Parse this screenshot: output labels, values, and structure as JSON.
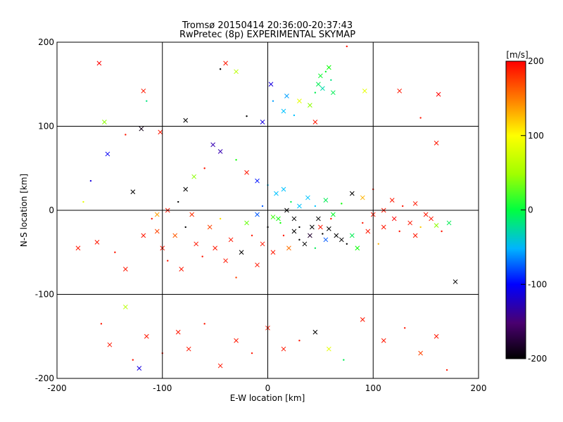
{
  "chart_data": {
    "type": "scatter",
    "title": "Tromsø 20150414 20:36:00-20:37:43",
    "subtitle": "RwPretec (8p) EXPERIMENTAL SKYMAP",
    "xlabel": "E-W location [km]",
    "ylabel": "N-S location [km]",
    "xlim": [
      -200,
      200
    ],
    "ylim": [
      -200,
      200
    ],
    "xticks": [
      -200,
      -100,
      0,
      100,
      200
    ],
    "yticks": [
      -200,
      -100,
      0,
      100,
      200
    ],
    "grid": true,
    "colorbar": {
      "label": "[m/s]",
      "range": [
        -200,
        200
      ],
      "ticks": [
        200,
        100,
        0,
        -100,
        -200
      ],
      "colors": [
        "#000000",
        "#5a0080",
        "#0000ff",
        "#00c8ff",
        "#00ff00",
        "#ffff00",
        "#ff8000",
        "#ff0000"
      ]
    },
    "markers": [
      "cross",
      "dot"
    ],
    "series": [
      {
        "points": [
          [
            -160,
            175,
            210
          ],
          [
            -155,
            105,
            60
          ],
          [
            -135,
            90,
            190
          ],
          [
            -120,
            97,
            -190
          ],
          [
            -118,
            142,
            190
          ],
          [
            -115,
            130,
            0
          ],
          [
            -102,
            93,
            190
          ],
          [
            -78,
            107,
            -200
          ],
          [
            -45,
            168,
            -200
          ],
          [
            -40,
            175,
            190
          ],
          [
            -30,
            165,
            70
          ],
          [
            -20,
            112,
            -200
          ],
          [
            -5,
            105,
            -100
          ],
          [
            3,
            150,
            -100
          ],
          [
            5,
            130,
            -40
          ],
          [
            18,
            136,
            -40
          ],
          [
            15,
            118,
            -30
          ],
          [
            25,
            113,
            -30
          ],
          [
            30,
            130,
            80
          ],
          [
            40,
            125,
            60
          ],
          [
            45,
            140,
            10
          ],
          [
            48,
            150,
            10
          ],
          [
            50,
            160,
            20
          ],
          [
            55,
            165,
            20
          ],
          [
            58,
            170,
            30
          ],
          [
            52,
            145,
            -10
          ],
          [
            60,
            155,
            0
          ],
          [
            62,
            140,
            10
          ],
          [
            45,
            105,
            190
          ],
          [
            75,
            195,
            190
          ],
          [
            92,
            142,
            80
          ],
          [
            125,
            142,
            190
          ],
          [
            145,
            110,
            190
          ],
          [
            162,
            138,
            200
          ],
          [
            160,
            80,
            190
          ],
          [
            -168,
            35,
            -100
          ],
          [
            -152,
            67,
            -90
          ],
          [
            -128,
            22,
            -200
          ],
          [
            -175,
            10,
            80
          ],
          [
            -180,
            -45,
            190
          ],
          [
            -162,
            -38,
            190
          ],
          [
            -145,
            -50,
            190
          ],
          [
            -135,
            -70,
            190
          ],
          [
            -118,
            -30,
            190
          ],
          [
            -110,
            -10,
            190
          ],
          [
            -105,
            -25,
            170
          ],
          [
            -100,
            -45,
            190
          ],
          [
            -95,
            -60,
            190
          ],
          [
            -88,
            -30,
            160
          ],
          [
            -82,
            -70,
            190
          ],
          [
            -78,
            -20,
            -200
          ],
          [
            -72,
            -5,
            180
          ],
          [
            -68,
            -40,
            190
          ],
          [
            -62,
            -55,
            190
          ],
          [
            -55,
            -20,
            170
          ],
          [
            -50,
            -45,
            190
          ],
          [
            -45,
            -10,
            100
          ],
          [
            -40,
            -60,
            190
          ],
          [
            -35,
            -35,
            190
          ],
          [
            -30,
            -80,
            170
          ],
          [
            -25,
            -50,
            -200
          ],
          [
            -20,
            -15,
            50
          ],
          [
            -15,
            -30,
            190
          ],
          [
            -10,
            -65,
            190
          ],
          [
            -5,
            -40,
            190
          ],
          [
            0,
            -20,
            -200
          ],
          [
            5,
            -50,
            190
          ],
          [
            10,
            -10,
            30
          ],
          [
            15,
            -30,
            190
          ],
          [
            20,
            -45,
            150
          ],
          [
            25,
            -25,
            -200
          ],
          [
            30,
            -35,
            -200
          ],
          [
            35,
            -40,
            -200
          ],
          [
            40,
            -30,
            -180
          ],
          [
            45,
            -45,
            10
          ],
          [
            50,
            -20,
            190
          ],
          [
            55,
            -35,
            -60
          ],
          [
            60,
            -10,
            190
          ],
          [
            65,
            -30,
            -200
          ],
          [
            70,
            -35,
            -200
          ],
          [
            75,
            -40,
            -200
          ],
          [
            80,
            -30,
            10
          ],
          [
            85,
            -45,
            30
          ],
          [
            90,
            -15,
            190
          ],
          [
            95,
            -25,
            190
          ],
          [
            100,
            -5,
            190
          ],
          [
            105,
            -40,
            120
          ],
          [
            110,
            -20,
            190
          ],
          [
            120,
            -10,
            200
          ],
          [
            125,
            -25,
            190
          ],
          [
            135,
            -15,
            190
          ],
          [
            140,
            -30,
            190
          ],
          [
            145,
            -20,
            110
          ],
          [
            155,
            -10,
            190
          ],
          [
            160,
            -18,
            60
          ],
          [
            165,
            -25,
            190
          ],
          [
            172,
            -15,
            10
          ],
          [
            178,
            -85,
            -200
          ],
          [
            -158,
            -135,
            190
          ],
          [
            -150,
            -160,
            190
          ],
          [
            -135,
            -115,
            70
          ],
          [
            -128,
            -178,
            190
          ],
          [
            -122,
            -188,
            -100
          ],
          [
            -115,
            -150,
            190
          ],
          [
            -100,
            -170,
            190
          ],
          [
            -85,
            -145,
            190
          ],
          [
            -75,
            -165,
            190
          ],
          [
            -60,
            -135,
            190
          ],
          [
            -45,
            -185,
            190
          ],
          [
            -30,
            -155,
            190
          ],
          [
            -15,
            -170,
            190
          ],
          [
            0,
            -140,
            190
          ],
          [
            15,
            -165,
            190
          ],
          [
            30,
            -155,
            190
          ],
          [
            45,
            -145,
            -200
          ],
          [
            58,
            -165,
            80
          ],
          [
            72,
            -178,
            10
          ],
          [
            90,
            -130,
            190
          ],
          [
            110,
            -155,
            190
          ],
          [
            130,
            -140,
            190
          ],
          [
            145,
            -170,
            170
          ],
          [
            160,
            -150,
            190
          ],
          [
            170,
            -190,
            190
          ],
          [
            -45,
            70,
            -120
          ],
          [
            -52,
            78,
            -120
          ],
          [
            -60,
            50,
            190
          ],
          [
            -70,
            40,
            60
          ],
          [
            -78,
            25,
            -200
          ],
          [
            -85,
            10,
            -200
          ],
          [
            -95,
            0,
            190
          ],
          [
            -105,
            -5,
            130
          ],
          [
            -30,
            60,
            30
          ],
          [
            -20,
            45,
            190
          ],
          [
            -10,
            35,
            -80
          ],
          [
            0,
            30,
            -30
          ],
          [
            8,
            20,
            -30
          ],
          [
            15,
            25,
            -30
          ],
          [
            22,
            10,
            10
          ],
          [
            30,
            5,
            -30
          ],
          [
            38,
            15,
            -30
          ],
          [
            45,
            5,
            -30
          ],
          [
            55,
            12,
            10
          ],
          [
            62,
            -5,
            20
          ],
          [
            70,
            8,
            30
          ],
          [
            80,
            20,
            -200
          ],
          [
            90,
            15,
            120
          ],
          [
            100,
            25,
            190
          ],
          [
            110,
            0,
            190
          ],
          [
            118,
            12,
            190
          ],
          [
            128,
            5,
            190
          ],
          [
            140,
            8,
            190
          ],
          [
            150,
            -5,
            190
          ],
          [
            -5,
            5,
            -60
          ],
          [
            -10,
            -5,
            -60
          ],
          [
            5,
            -8,
            40
          ],
          [
            12,
            -15,
            30
          ],
          [
            18,
            0,
            -200
          ],
          [
            25,
            -10,
            -200
          ],
          [
            30,
            -20,
            -200
          ],
          [
            42,
            -20,
            -200
          ],
          [
            48,
            -10,
            -200
          ],
          [
            52,
            -28,
            -200
          ],
          [
            58,
            -22,
            -200
          ]
        ]
      }
    ]
  }
}
